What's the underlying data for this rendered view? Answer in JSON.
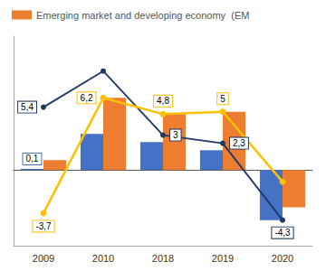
{
  "chart_data": {
    "type": "bar",
    "categories": [
      "2009",
      "2010",
      "2018",
      "2019",
      "2020"
    ],
    "series": [
      {
        "type": "bar",
        "color": "#4472C4",
        "values": [
          0.1,
          3.1,
          2.4,
          1.7,
          -4.3
        ],
        "value_labels": [
          "0,1",
          null,
          null,
          null,
          null
        ]
      },
      {
        "type": "bar",
        "name": "Emerging market and developing economy  (EM",
        "color": "#ED7D31",
        "values": [
          0.85,
          6.2,
          4.8,
          5.0,
          -3.2
        ]
      },
      {
        "type": "line",
        "color": "#1F3864",
        "marker": "circle",
        "line_style": "solid",
        "values": [
          5.4,
          8.5,
          3.0,
          2.3,
          -4.3
        ],
        "value_labels": [
          "5,4",
          null,
          "3",
          "2,3",
          "-4,3"
        ]
      },
      {
        "type": "line",
        "color": "#FFC000",
        "marker": "circle",
        "line_style": "solid",
        "values": [
          -3.7,
          6.2,
          4.8,
          5.0,
          -1.0
        ],
        "value_labels": [
          "-3,7",
          "6,2",
          "4,8",
          "5",
          null
        ]
      }
    ],
    "ylim": [
      -6.5,
      11.5
    ],
    "yticks": [],
    "grid": false,
    "legend": "upper left",
    "tick_labels": "x"
  }
}
